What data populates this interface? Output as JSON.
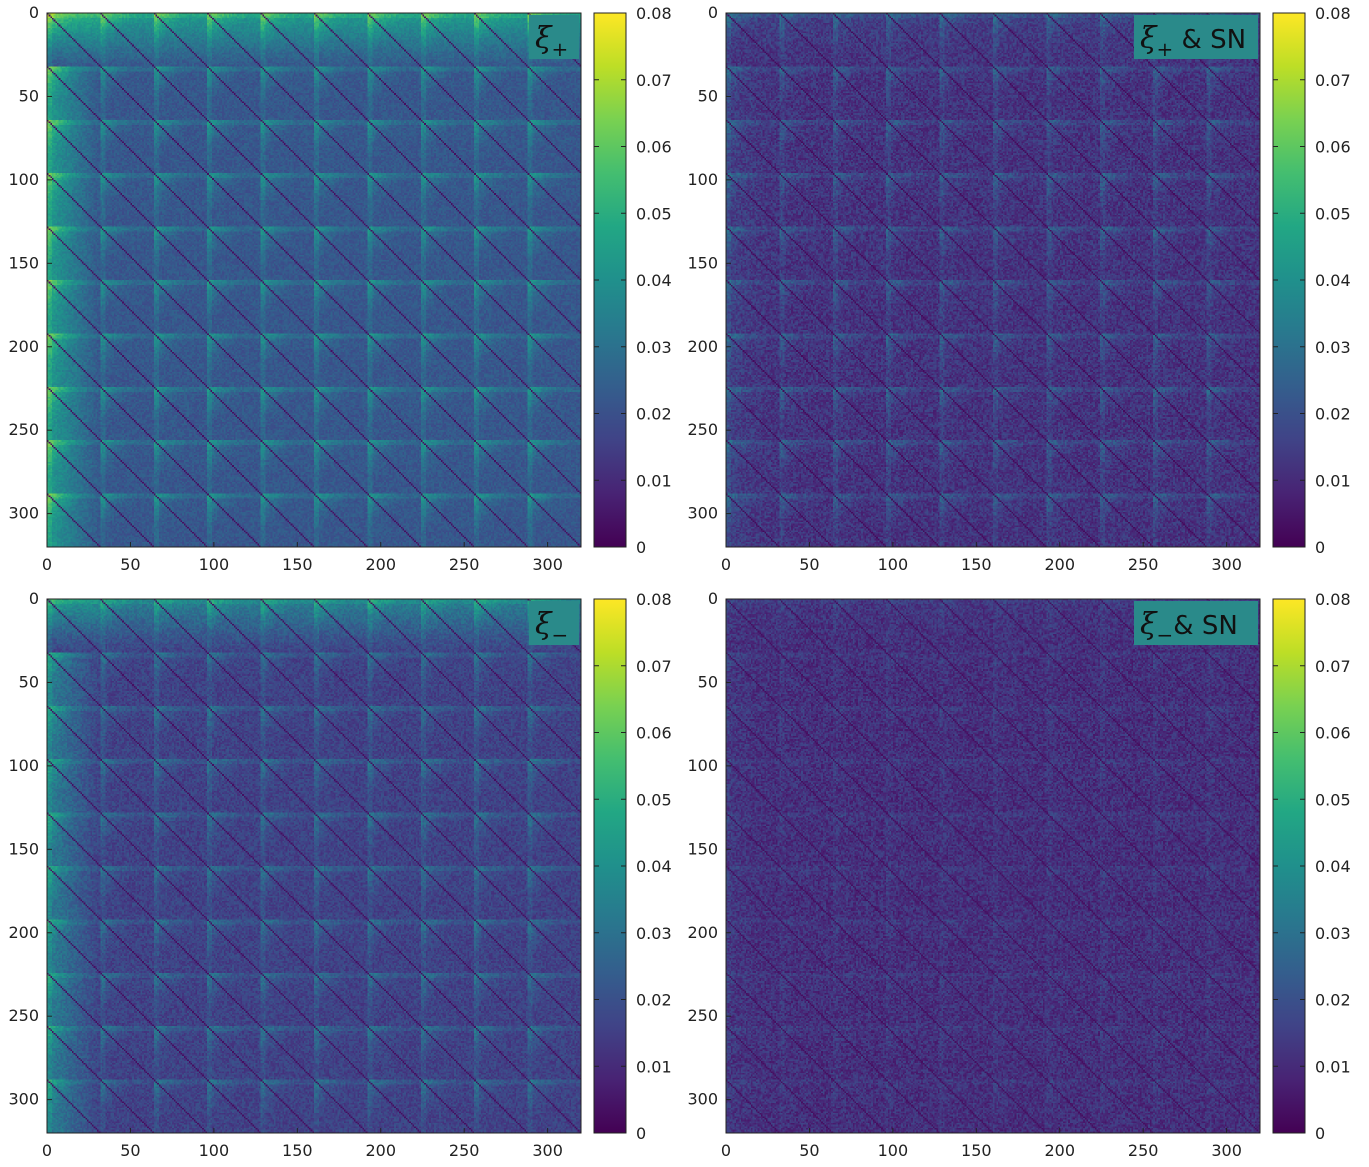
{
  "chart_data": [
    {
      "type": "heatmap",
      "title_symbol": "ξ",
      "title_subscript": "+",
      "title_suffix": "",
      "title_color": "#2a8a8a",
      "matrix_size": 320,
      "block_size": 32,
      "x_ticks": [
        0,
        50,
        100,
        150,
        200,
        250,
        300
      ],
      "y_ticks": [
        0,
        50,
        100,
        150,
        200,
        250,
        300
      ],
      "colorbar_ticks": [
        "0",
        "0.01",
        "0.02",
        "0.03",
        "0.04",
        "0.05",
        "0.06",
        "0.07",
        "0.08"
      ],
      "colorbar_range": [
        0,
        0.08
      ],
      "base_level": 0.022,
      "noise_level": 0.004,
      "first_block_boost": 0.028,
      "edge_boost": 0.018,
      "diag_value": 0.003,
      "grid": false
    },
    {
      "type": "heatmap",
      "title_symbol": "ξ",
      "title_subscript": "+",
      "title_suffix": " & SN",
      "title_color": "#2a8a8a",
      "matrix_size": 320,
      "block_size": 32,
      "x_ticks": [
        0,
        50,
        100,
        150,
        200,
        250,
        300
      ],
      "y_ticks": [
        0,
        50,
        100,
        150,
        200,
        250,
        300
      ],
      "colorbar_ticks": [
        "0",
        "0.01",
        "0.02",
        "0.03",
        "0.04",
        "0.05",
        "0.06",
        "0.07",
        "0.08"
      ],
      "colorbar_range": [
        0,
        0.08
      ],
      "base_level": 0.012,
      "noise_level": 0.006,
      "first_block_boost": 0.004,
      "edge_boost": 0.012,
      "diag_value": 0.002,
      "grid": false
    },
    {
      "type": "heatmap",
      "title_symbol": "ξ",
      "title_subscript": "−",
      "title_suffix": "",
      "title_color": "#2a8a8a",
      "matrix_size": 320,
      "block_size": 32,
      "x_ticks": [
        0,
        50,
        100,
        150,
        200,
        250,
        300
      ],
      "y_ticks": [
        0,
        50,
        100,
        150,
        200,
        250,
        300
      ],
      "colorbar_ticks": [
        "0",
        "0.01",
        "0.02",
        "0.03",
        "0.04",
        "0.05",
        "0.06",
        "0.07",
        "0.08"
      ],
      "colorbar_range": [
        0,
        0.08
      ],
      "base_level": 0.016,
      "noise_level": 0.005,
      "first_block_boost": 0.024,
      "edge_boost": 0.014,
      "diag_value": 0.003,
      "grid": false
    },
    {
      "type": "heatmap",
      "title_symbol": "ξ",
      "title_subscript": "−",
      "title_suffix": "& SN",
      "title_color": "#2a8a8a",
      "matrix_size": 320,
      "block_size": 32,
      "x_ticks": [
        0,
        50,
        100,
        150,
        200,
        250,
        300
      ],
      "y_ticks": [
        0,
        50,
        100,
        150,
        200,
        250,
        300
      ],
      "colorbar_ticks": [
        "0",
        "0.01",
        "0.02",
        "0.03",
        "0.04",
        "0.05",
        "0.06",
        "0.07",
        "0.08"
      ],
      "colorbar_range": [
        0,
        0.08
      ],
      "base_level": 0.011,
      "noise_level": 0.006,
      "first_block_boost": 0.002,
      "edge_boost": 0.004,
      "diag_value": 0.003,
      "grid": false
    }
  ]
}
